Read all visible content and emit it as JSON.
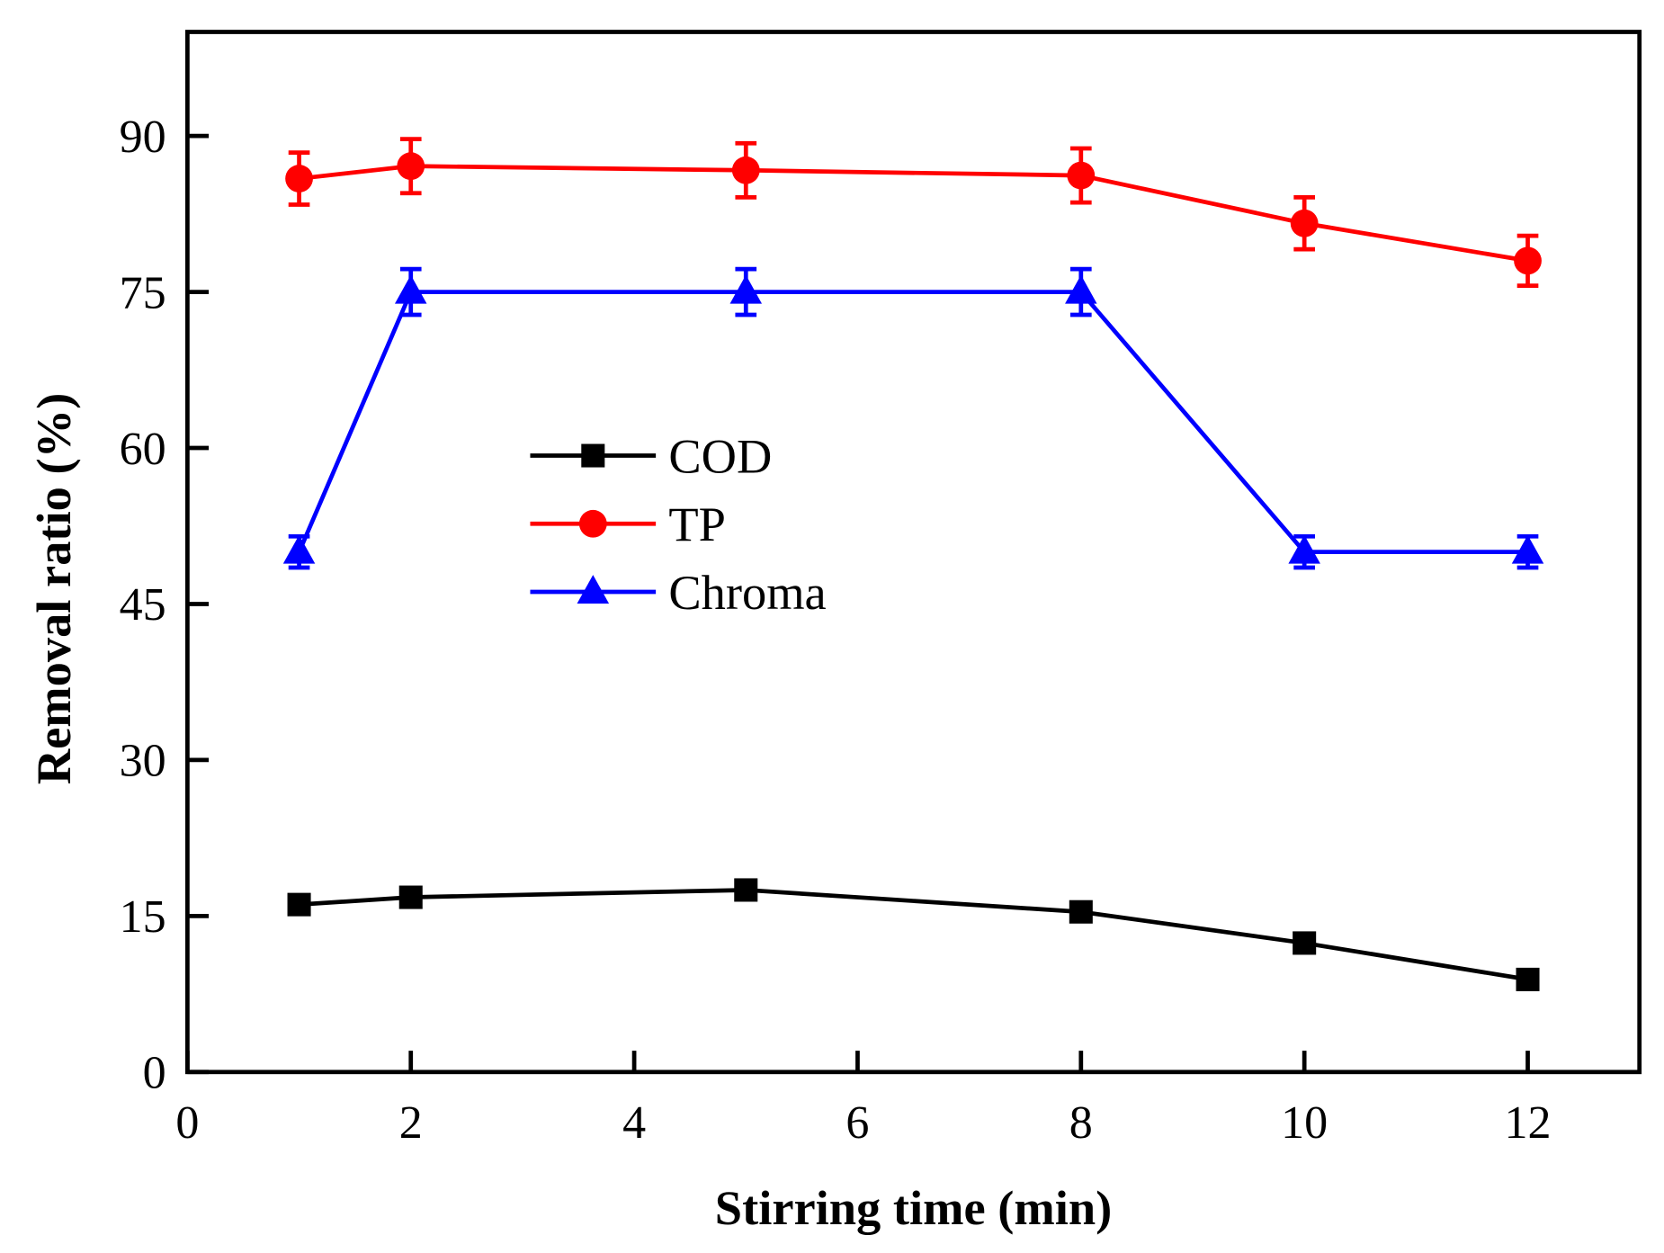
{
  "chart_data": {
    "type": "line",
    "title": "",
    "xlabel": "Stirring time (min)",
    "ylabel": "Removal ratio (%)",
    "xlim": [
      0,
      13
    ],
    "ylim": [
      0,
      100
    ],
    "xticks": [
      0,
      2,
      4,
      6,
      8,
      10,
      12
    ],
    "yticks": [
      0,
      15,
      30,
      45,
      60,
      75,
      90
    ],
    "x": [
      1,
      2,
      5,
      8,
      10,
      12
    ],
    "grid": false,
    "legend_position": "center-left",
    "series": [
      {
        "name": "COD",
        "color": "#000000",
        "marker": "square",
        "values": [
          16.1,
          16.8,
          17.5,
          15.4,
          12.4,
          8.9
        ],
        "errors": [
          0.8,
          0.8,
          0.8,
          0.8,
          0.8,
          0.8
        ]
      },
      {
        "name": "TP",
        "color": "#ff0000",
        "marker": "circle",
        "values": [
          85.9,
          87.1,
          86.7,
          86.2,
          81.6,
          78.0
        ],
        "errors": [
          2.5,
          2.6,
          2.6,
          2.6,
          2.5,
          2.4
        ]
      },
      {
        "name": "Chroma",
        "color": "#0000ff",
        "marker": "triangle",
        "values": [
          50,
          75,
          75,
          75,
          50,
          50
        ],
        "errors": [
          1.5,
          2.2,
          2.2,
          2.2,
          1.5,
          1.5
        ]
      }
    ]
  }
}
